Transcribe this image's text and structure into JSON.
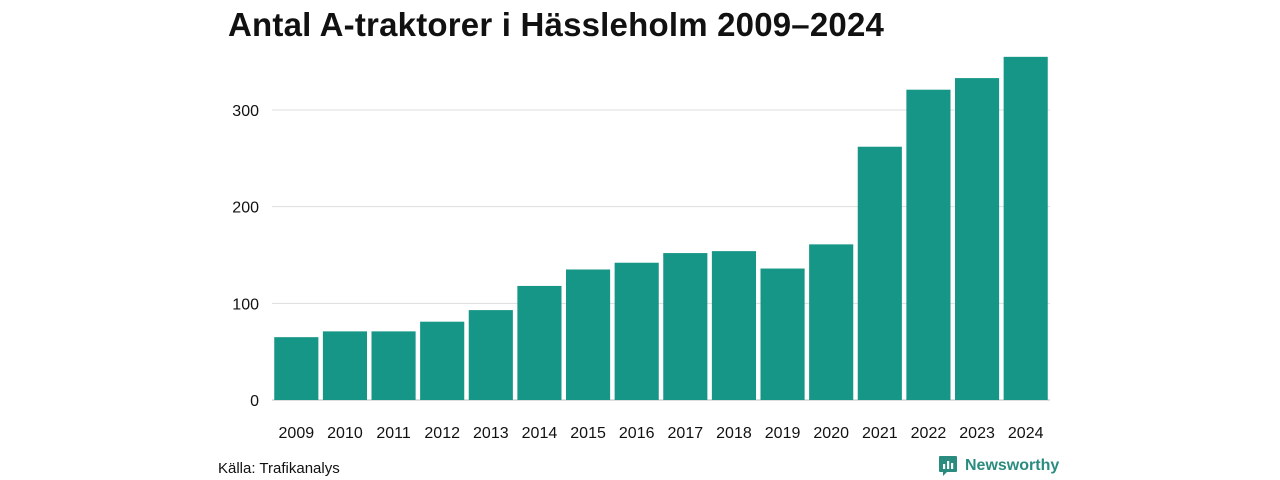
{
  "title": "Antal A-traktorer i Hässleholm 2009–2024",
  "source": "Källa: Trafikanalys",
  "brand": {
    "name": "Newsworthy",
    "icon": "newsworthy-logo-icon"
  },
  "colors": {
    "bar": "#169686",
    "grid": "#dddddd",
    "axis": "#bbbbbb",
    "text": "#111111",
    "brand": "#2a8c7e"
  },
  "chart_data": {
    "type": "bar",
    "categories": [
      "2009",
      "2010",
      "2011",
      "2012",
      "2013",
      "2014",
      "2015",
      "2016",
      "2017",
      "2018",
      "2019",
      "2020",
      "2021",
      "2022",
      "2023",
      "2024"
    ],
    "values": [
      65,
      71,
      71,
      81,
      93,
      118,
      135,
      142,
      152,
      154,
      136,
      161,
      262,
      321,
      333,
      355
    ],
    "title": "Antal A-traktorer i Hässleholm 2009–2024",
    "xlabel": "",
    "ylabel": "",
    "ylim": [
      0,
      360
    ],
    "yticks": [
      0,
      100,
      200,
      300
    ],
    "grid": true,
    "legend": "none"
  }
}
